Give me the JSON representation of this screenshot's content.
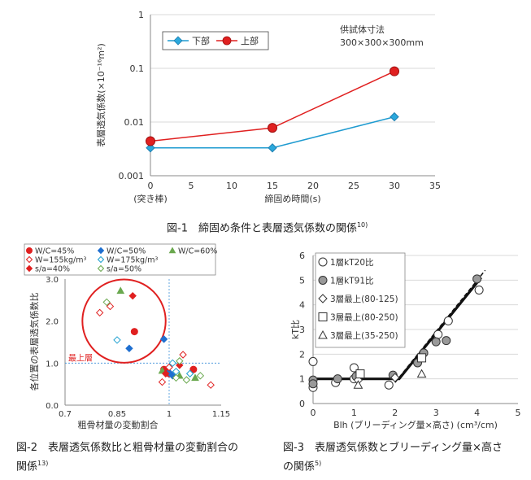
{
  "chart_data": [
    {
      "type": "line",
      "title": "",
      "xlabel": "締固め時間(s)",
      "ylabel": "表層透気係数(×10⁻¹⁶m²)",
      "y_scale": "log",
      "xlim": [
        0,
        35
      ],
      "ylim": [
        0.001,
        1
      ],
      "x_ticks": [
        "0",
        "5",
        "10",
        "15",
        "20",
        "25",
        "30",
        "35"
      ],
      "y_ticks": [
        "0.001",
        "0.01",
        "0.1",
        "1"
      ],
      "x_tick_note": "(突き棒)",
      "legend_position": "top-left",
      "annotation": [
        "供試体寸法",
        "300×300×300mm"
      ],
      "x": [
        0,
        15,
        30
      ],
      "series": [
        {
          "name": "下部",
          "values": [
            0.0033,
            0.0033,
            0.0125
          ],
          "color": "#1f9bd0",
          "marker": "diamond"
        },
        {
          "name": "上部",
          "values": [
            0.0044,
            0.0078,
            0.088
          ],
          "color": "#e02020",
          "marker": "circle"
        }
      ]
    },
    {
      "type": "scatter",
      "xlabel": "粗骨材量の変動割合",
      "ylabel": "各位置の表層透気係数比",
      "xlim": [
        0.7,
        1.15
      ],
      "ylim": [
        0.0,
        3.0
      ],
      "x_ticks": [
        "0.7",
        "0.85",
        "1",
        "1.15"
      ],
      "y_ticks": [
        "0.0",
        "1.0",
        "2.0",
        "3.0"
      ],
      "annotation": "最上層",
      "reference_lines": {
        "x": 1.0,
        "y": 1.0
      },
      "highlight_circle": {
        "cx": 0.87,
        "cy": 2.0,
        "r_x": 0.12
      },
      "legend_position": "top",
      "series": [
        {
          "name": "W/C=45%",
          "marker": "circle",
          "fill": true,
          "color": "#e02020",
          "points": [
            [
              0.9,
              1.75
            ],
            [
              0.985,
              0.85
            ],
            [
              0.99,
              0.8
            ],
            [
              1.07,
              0.85
            ],
            [
              1.0,
              0.75
            ]
          ]
        },
        {
          "name": "W/C=50%",
          "marker": "diamond",
          "fill": true,
          "color": "#1f6fd0",
          "points": [
            [
              0.885,
              1.35
            ],
            [
              0.985,
              1.57
            ],
            [
              1.0,
              0.78
            ],
            [
              1.01,
              0.7
            ]
          ]
        },
        {
          "name": "W/C=60%",
          "marker": "triangle",
          "fill": true,
          "color": "#6aa84f",
          "points": [
            [
              0.86,
              2.72
            ],
            [
              0.98,
              0.82
            ],
            [
              1.03,
              0.7
            ],
            [
              1.075,
              0.65
            ]
          ]
        },
        {
          "name": "W=155kg/m³",
          "marker": "diamond",
          "fill": false,
          "color": "#e02020",
          "points": [
            [
              0.8,
              2.2
            ],
            [
              0.83,
              2.35
            ],
            [
              0.98,
              0.55
            ],
            [
              1.04,
              1.2
            ],
            [
              1.12,
              0.48
            ],
            [
              1.0,
              0.9
            ]
          ]
        },
        {
          "name": "W=175kg/m³",
          "marker": "diamond",
          "fill": false,
          "color": "#1fa0d0",
          "points": [
            [
              0.85,
              1.55
            ],
            [
              1.01,
              1.0
            ],
            [
              1.02,
              0.8
            ],
            [
              1.06,
              0.75
            ]
          ]
        },
        {
          "name": "s/a=40%",
          "marker": "diamond",
          "fill": true,
          "color": "#e02020",
          "points": [
            [
              0.99,
              0.75
            ],
            [
              1.03,
              0.95
            ],
            [
              0.895,
              2.6
            ]
          ]
        },
        {
          "name": "s/a=50%",
          "marker": "diamond",
          "fill": false,
          "color": "#6aa84f",
          "points": [
            [
              0.82,
              2.45
            ],
            [
              1.02,
              0.65
            ],
            [
              1.05,
              0.6
            ],
            [
              1.09,
              0.7
            ],
            [
              1.03,
              1.05
            ]
          ]
        }
      ]
    },
    {
      "type": "scatter",
      "xlabel": "Blh (ブリーディング量×高さ) (cm³/cm)",
      "ylabel": "kT比",
      "xlim": [
        0,
        5
      ],
      "ylim": [
        0,
        6
      ],
      "x_ticks": [
        "0",
        "1",
        "2",
        "3",
        "4",
        "5"
      ],
      "y_ticks": [
        "0",
        "1",
        "2",
        "3",
        "4",
        "5",
        "6"
      ],
      "legend_position": "top-left",
      "series": [
        {
          "name": "1層kT20比",
          "marker": "circle",
          "fill": false,
          "points": [
            [
              0,
              0.65
            ],
            [
              0,
              1.7
            ],
            [
              0.55,
              0.85
            ],
            [
              1.0,
              1.45
            ],
            [
              1.0,
              1.0
            ],
            [
              1.85,
              0.75
            ],
            [
              3.05,
              2.8
            ],
            [
              3.3,
              3.35
            ],
            [
              4.05,
              4.6
            ]
          ]
        },
        {
          "name": "1層kT91比",
          "marker": "circle",
          "fill": true,
          "points": [
            [
              0,
              0.95
            ],
            [
              0,
              0.8
            ],
            [
              0.6,
              1.0
            ],
            [
              1.05,
              1.1
            ],
            [
              1.95,
              1.15
            ],
            [
              2.55,
              1.65
            ],
            [
              2.7,
              2.05
            ],
            [
              3.0,
              2.5
            ],
            [
              3.25,
              2.55
            ],
            [
              4.0,
              5.05
            ]
          ]
        },
        {
          "name": "3層最上(80-125)",
          "marker": "diamond",
          "fill": false,
          "points": [
            [
              1.1,
              0.95
            ],
            [
              2.0,
              1.05
            ]
          ]
        },
        {
          "name": "3層最上(80-250)",
          "marker": "square",
          "fill": false,
          "points": [
            [
              1.15,
              1.2
            ],
            [
              2.65,
              1.85
            ]
          ]
        },
        {
          "name": "3層最上(35-250)",
          "marker": "triangle",
          "fill": false,
          "points": [
            [
              1.1,
              0.75
            ],
            [
              2.65,
              1.2
            ]
          ]
        }
      ],
      "fit_lines": [
        {
          "style": "solid",
          "points": [
            [
              0,
              1.0
            ],
            [
              2.1,
              1.0
            ],
            [
              4.1,
              5.1
            ]
          ]
        },
        {
          "style": "dashed",
          "points": [
            [
              2.0,
              0.85
            ],
            [
              4.2,
              5.4
            ]
          ]
        }
      ]
    }
  ],
  "captions": {
    "fig1": {
      "text": "図-1　締固め条件と表層透気係数の関係",
      "ref": "10)"
    },
    "fig2": {
      "line1": "図-2　表層透気係数比と粗骨材量の変動割合の",
      "line2": "関係",
      "ref": "13)"
    },
    "fig3": {
      "line1": "図-3　表層透気係数とブリーディング量×高さ",
      "line2": "の関係",
      "ref": "5)"
    }
  }
}
